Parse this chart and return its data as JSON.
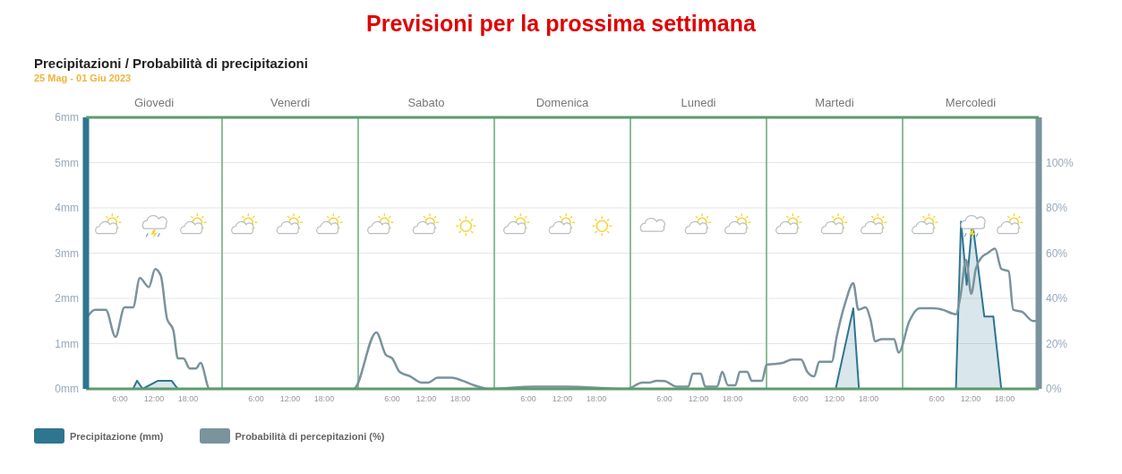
{
  "chart_data": {
    "type": "line",
    "title": "Previsioni per la prossima settimana",
    "subtitle": "Precipitazioni / Probabilità di precipitazioni",
    "annotations": [
      "25 Mag - 01 Giu 2023",
      "Giovedi",
      "Venerdi",
      "Sabato",
      "Domenica",
      "Lunedi",
      "Martedi",
      "Mercoledi"
    ],
    "xlim": [
      "2023-05-25T00:00",
      "2023-06-01T00:00"
    ],
    "xticks": [
      {
        "value": "2023-05-25T06:00",
        "label": "6:00"
      },
      {
        "value": "2023-05-25T12:00",
        "label": "12:00"
      },
      {
        "value": "2023-05-25T18:00",
        "label": "18:00"
      },
      {
        "value": "2023-05-26T06:00",
        "label": "6:00"
      },
      {
        "value": "2023-05-26T12:00",
        "label": "12:00"
      },
      {
        "value": "2023-05-26T18:00",
        "label": "18:00"
      },
      {
        "value": "2023-05-27T06:00",
        "label": "6:00"
      },
      {
        "value": "2023-05-27T12:00",
        "label": "12:00"
      },
      {
        "value": "2023-05-27T18:00",
        "label": "18:00"
      },
      {
        "value": "2023-05-28T06:00",
        "label": "6:00"
      },
      {
        "value": "2023-05-28T12:00",
        "label": "12:00"
      },
      {
        "value": "2023-05-28T18:00",
        "label": "18:00"
      },
      {
        "value": "2023-05-29T06:00",
        "label": "6:00"
      },
      {
        "value": "2023-05-29T12:00",
        "label": "12:00"
      },
      {
        "value": "2023-05-29T18:00",
        "label": "18:00"
      },
      {
        "value": "2023-05-30T06:00",
        "label": "6:00"
      },
      {
        "value": "2023-05-30T12:00",
        "label": "12:00"
      },
      {
        "value": "2023-05-30T18:00",
        "label": "18:00"
      },
      {
        "value": "2023-05-31T06:00",
        "label": "6:00"
      },
      {
        "value": "2023-05-31T12:00",
        "label": "12:00"
      },
      {
        "value": "2023-05-31T18:00",
        "label": "18:00"
      }
    ],
    "ylim": [
      0,
      6
    ],
    "yticks": [
      {
        "value": 0,
        "label": "0mm"
      },
      {
        "value": 1,
        "label": "1mm"
      },
      {
        "value": 2,
        "label": "2mm"
      },
      {
        "value": 3,
        "label": "3mm"
      },
      {
        "value": 4,
        "label": "4mm"
      },
      {
        "value": 5,
        "label": "5mm"
      },
      {
        "value": 6,
        "label": "6mm"
      }
    ],
    "y2lim": [
      0,
      120
    ],
    "y2ticks": [
      {
        "value": 0,
        "label": "0%"
      },
      {
        "value": 20,
        "label": "20%"
      },
      {
        "value": 40,
        "label": "40%"
      },
      {
        "value": 60,
        "label": "60%"
      },
      {
        "value": 80,
        "label": "80%"
      },
      {
        "value": 100,
        "label": "100%"
      }
    ],
    "grid": "y",
    "legend": "bottom left",
    "marker": "none",
    "line_style": "solid",
    "ref_lines": [
      {
        "axis": "x",
        "value": "2023-05-26T00:00",
        "color": "#8fbc9a"
      },
      {
        "axis": "x",
        "value": "2023-05-27T00:00",
        "color": "#8fbc9a"
      },
      {
        "axis": "x",
        "value": "2023-05-28T00:00",
        "color": "#8fbc9a"
      },
      {
        "axis": "x",
        "value": "2023-05-29T00:00",
        "color": "#8fbc9a"
      },
      {
        "axis": "x",
        "value": "2023-05-30T00:00",
        "color": "#8fbc9a"
      },
      {
        "axis": "x",
        "value": "2023-05-31T00:00",
        "color": "#8fbc9a"
      }
    ],
    "series": [
      {
        "name": "Precipitazione (mm)",
        "type": "area",
        "color": "#2e7590",
        "x": [
          "2023-05-25T00:00",
          "2023-05-25T08:18",
          "2023-05-25T09:00",
          "2023-05-25T10:00",
          "2023-05-25T12:42",
          "2023-05-25T15:06",
          "2023-05-25T16:12",
          "2023-05-30T12:12",
          "2023-05-30T15:18",
          "2023-05-30T16:18",
          "2023-05-31T09:24",
          "2023-05-31T10:18",
          "2023-05-31T11:18",
          "2023-05-31T12:18",
          "2023-05-31T14:24",
          "2023-05-31T16:00",
          "2023-05-31T17:24",
          "2023-06-01T00:00"
        ],
        "values": [
          0,
          0,
          0.18,
          0,
          0.18,
          0.18,
          0,
          0,
          1.78,
          0,
          0,
          3.7,
          2.3,
          3.7,
          1.6,
          1.6,
          0,
          0
        ]
      },
      {
        "name": "Probabilità di percepitazioni (%)",
        "axis": "y2",
        "color": "#7a939c",
        "x": [
          "2023-05-25T00:00",
          "2023-05-25T01:36",
          "2023-05-25T03:30",
          "2023-05-25T05:12",
          "2023-05-25T06:48",
          "2023-05-25T08:18",
          "2023-05-25T09:30",
          "2023-05-25T11:06",
          "2023-05-25T12:12",
          "2023-05-25T13:12",
          "2023-05-25T14:18",
          "2023-05-25T15:24",
          "2023-05-25T16:12",
          "2023-05-25T17:12",
          "2023-05-25T18:18",
          "2023-05-25T19:24",
          "2023-05-25T20:12",
          "2023-05-25T21:48",
          "2023-05-26T23:12",
          "2023-05-27T03:12",
          "2023-05-27T04:54",
          "2023-05-27T06:00",
          "2023-05-27T07:18",
          "2023-05-27T09:12",
          "2023-05-27T11:06",
          "2023-05-27T12:24",
          "2023-05-27T14:00",
          "2023-05-27T16:24",
          "2023-05-27T18:24",
          "2023-05-27T20:24",
          "2023-05-27T23:00",
          "2023-05-28T07:00",
          "2023-05-28T12:36",
          "2023-05-28T23:24",
          "2023-05-29T02:06",
          "2023-05-29T03:24",
          "2023-05-29T04:36",
          "2023-05-29T06:00",
          "2023-05-29T08:06",
          "2023-05-29T10:12",
          "2023-05-29T11:00",
          "2023-05-29T12:24",
          "2023-05-29T13:12",
          "2023-05-29T15:18",
          "2023-05-29T16:12",
          "2023-05-29T17:12",
          "2023-05-29T18:30",
          "2023-05-29T19:18",
          "2023-05-29T20:36",
          "2023-05-29T21:24",
          "2023-05-29T23:12",
          "2023-05-30T00:00",
          "2023-05-30T01:18",
          "2023-05-30T02:54",
          "2023-05-30T04:30",
          "2023-05-30T06:06",
          "2023-05-30T07:12",
          "2023-05-30T08:24",
          "2023-05-30T09:18",
          "2023-05-30T11:30",
          "2023-05-30T12:24",
          "2023-05-30T14:00",
          "2023-05-30T15:18",
          "2023-05-30T16:12",
          "2023-05-30T17:30",
          "2023-05-30T18:18",
          "2023-05-30T19:12",
          "2023-05-30T20:18",
          "2023-05-30T22:30",
          "2023-05-30T23:18",
          "2023-05-31T01:12",
          "2023-05-31T03:00",
          "2023-05-31T05:24",
          "2023-05-31T07:00",
          "2023-05-31T09:24",
          "2023-05-31T10:12",
          "2023-05-31T11:12",
          "2023-05-31T12:06",
          "2023-05-31T12:54",
          "2023-05-31T13:54",
          "2023-05-31T15:00",
          "2023-05-31T16:18",
          "2023-05-31T17:24",
          "2023-05-31T18:42",
          "2023-05-31T19:30",
          "2023-05-31T21:06",
          "2023-05-31T23:00",
          "2023-06-01T00:00"
        ],
        "values": [
          31,
          35,
          35,
          23,
          36,
          36,
          49,
          45,
          53,
          50,
          31,
          26,
          13.5,
          13.5,
          9,
          9,
          11.5,
          0,
          0,
          25,
          15,
          13.5,
          7.5,
          5.5,
          2.8,
          2.8,
          5,
          5,
          3.6,
          1.6,
          0,
          1,
          1,
          0,
          2.8,
          2.8,
          3.6,
          3.5,
          1,
          1,
          6.7,
          6.7,
          1,
          1,
          7.5,
          1.6,
          1.6,
          7.5,
          7.5,
          3.6,
          3.6,
          10.7,
          11,
          11.5,
          13,
          13,
          7.5,
          5.5,
          12,
          12,
          23.4,
          39,
          46.7,
          35,
          36,
          31,
          21,
          22,
          22,
          16,
          30,
          35.6,
          35.6,
          35,
          33,
          41,
          57,
          42,
          53,
          58,
          60,
          62,
          53,
          52,
          35,
          34,
          30,
          30
        ]
      }
    ]
  }
}
